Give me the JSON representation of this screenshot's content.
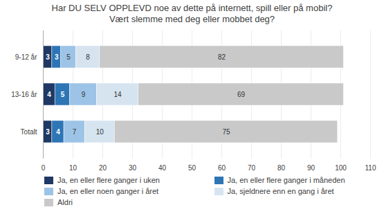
{
  "chart_data": {
    "type": "bar",
    "orientation": "horizontal",
    "stacked": true,
    "title": "Har DU SELV OPPLEVD noe av dette på internett, spill eller på mobil?",
    "subtitle": "Vært slemme med deg eller mobbet deg?",
    "categories": [
      "9-12 år",
      "13-16 år",
      "Totalt"
    ],
    "series": [
      {
        "name": "Ja, en eller flere ganger i uken",
        "color": "#1F3864",
        "values": [
          3,
          4,
          3
        ]
      },
      {
        "name": "Ja, en eller flere ganger i måneden",
        "color": "#2E75B6",
        "values": [
          3,
          5,
          4
        ]
      },
      {
        "name": "Ja, en eller noen ganger i året",
        "color": "#9DC3E6",
        "values": [
          5,
          9,
          7
        ]
      },
      {
        "name": "Ja, sjeldnere enn en gang i året",
        "color": "#D6E4F0",
        "values": [
          8,
          14,
          10
        ]
      },
      {
        "name": "Aldri",
        "color": "#C9C9C9",
        "values": [
          82,
          69,
          75
        ]
      }
    ],
    "xlim": [
      0,
      110
    ],
    "xticks": [
      0,
      10,
      20,
      30,
      40,
      50,
      60,
      70,
      80,
      90,
      100,
      110
    ],
    "grid": true,
    "legend": "bottom",
    "data_labels": true
  }
}
